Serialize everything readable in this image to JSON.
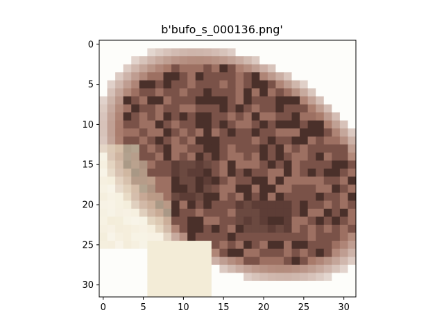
{
  "title": "b'bufo_s_000136.png'",
  "image": {
    "rows": 32,
    "cols": 32,
    "description_colors": {
      "background": "#fdfdfa",
      "toad_dark": "#3a2420",
      "toad_mid": "#7a5248",
      "toad_light": "#a87a6a",
      "sand_light": "#efe4c8"
    }
  },
  "axes": {
    "x_ticks": [
      "0",
      "5",
      "10",
      "15",
      "20",
      "25",
      "30"
    ],
    "y_ticks": [
      "0",
      "5",
      "10",
      "15",
      "20",
      "25",
      "30"
    ]
  }
}
